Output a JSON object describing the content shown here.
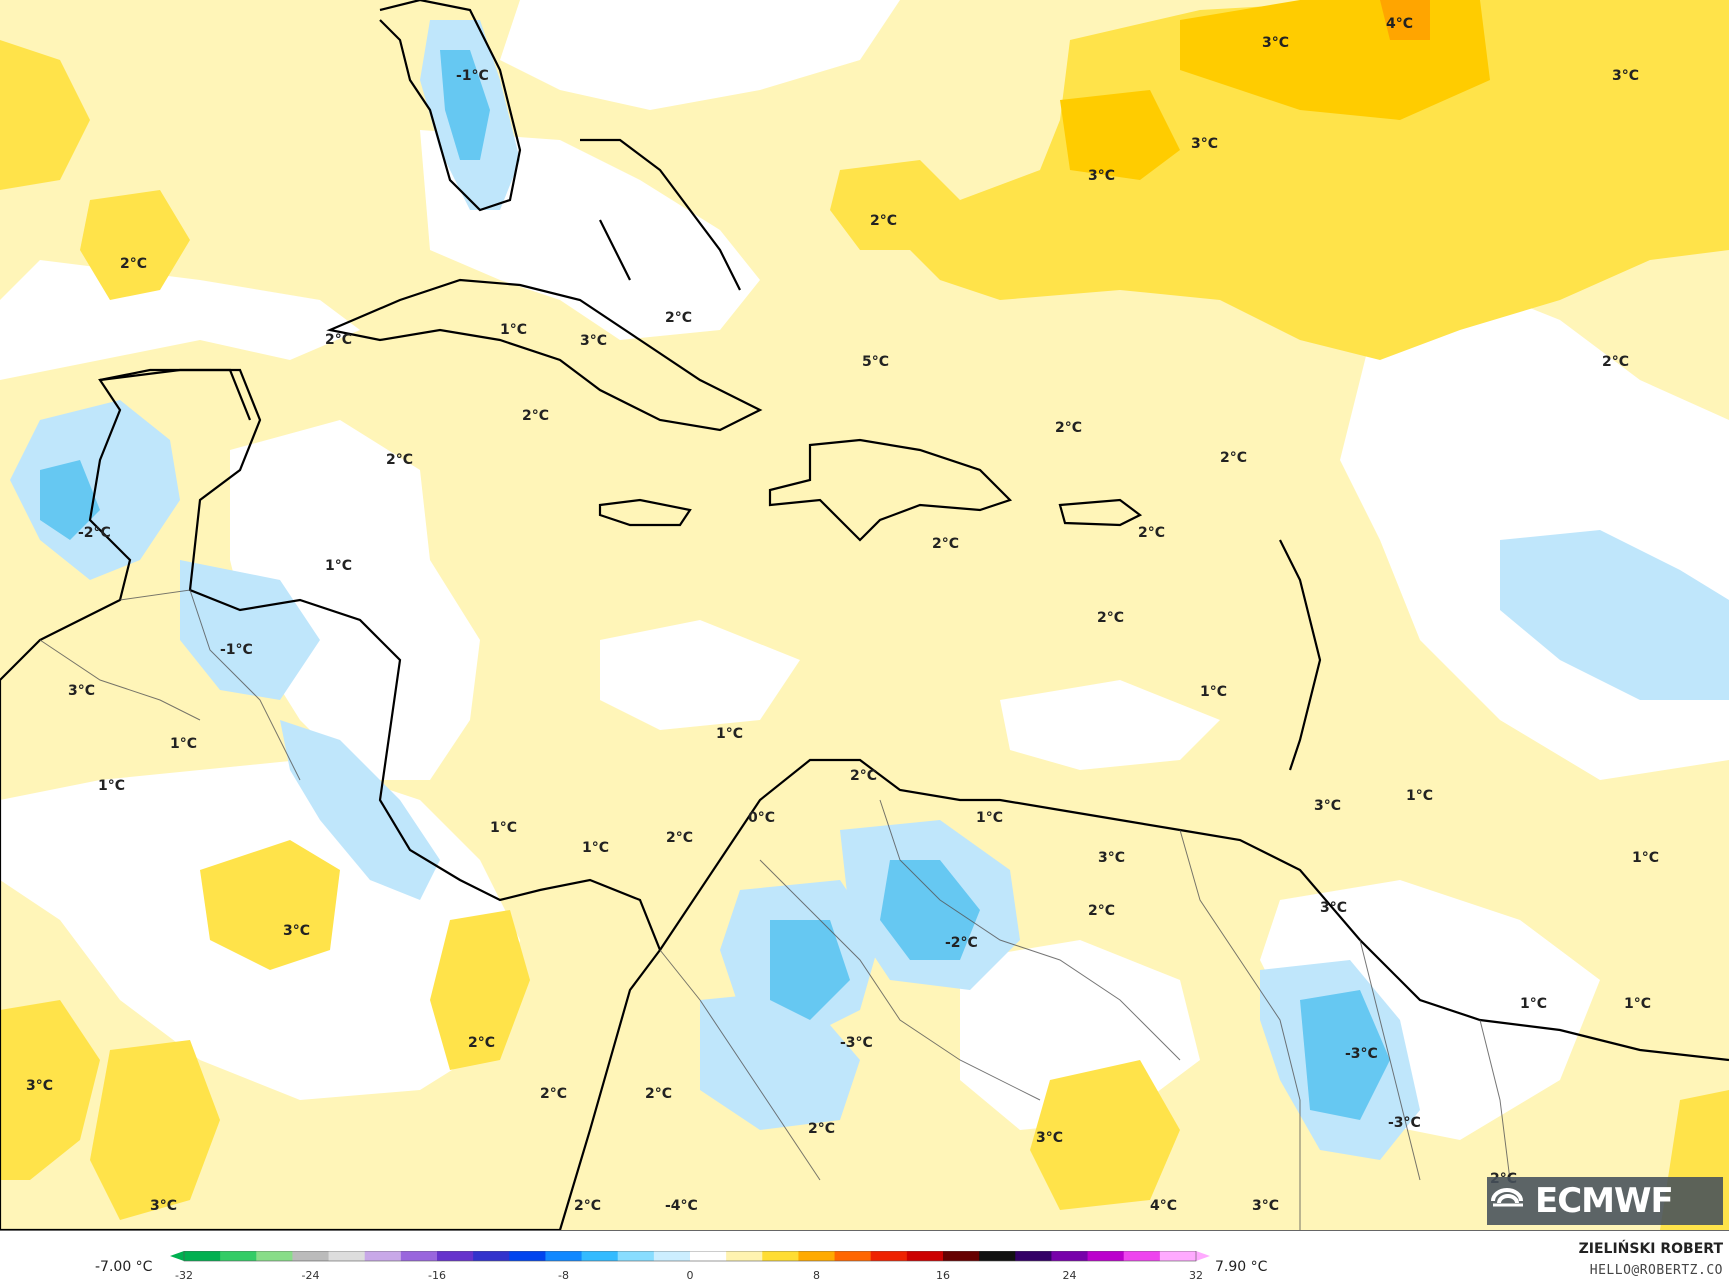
{
  "map": {
    "labels": [
      {
        "text": "4°C"
      },
      {
        "text": "3°C"
      },
      {
        "text": "3°C"
      },
      {
        "text": "3°C"
      },
      {
        "text": "3°C"
      },
      {
        "text": "-1°C"
      },
      {
        "text": "2°C"
      },
      {
        "text": "2°C"
      },
      {
        "text": "2°C"
      },
      {
        "text": "1°C"
      },
      {
        "text": "3°C"
      },
      {
        "text": "2°C"
      },
      {
        "text": "5°C"
      },
      {
        "text": "2°C"
      },
      {
        "text": "2°C"
      },
      {
        "text": "2°C"
      },
      {
        "text": "2°C"
      },
      {
        "text": "2°C"
      },
      {
        "text": "-2°C"
      },
      {
        "text": "1°C"
      },
      {
        "text": "2°C"
      },
      {
        "text": "2°C"
      },
      {
        "text": "-1°C"
      },
      {
        "text": "1°C"
      },
      {
        "text": "3°C"
      },
      {
        "text": "1°C"
      },
      {
        "text": "1°C"
      },
      {
        "text": "2°C"
      },
      {
        "text": "1°C"
      },
      {
        "text": "1°C"
      },
      {
        "text": "1°C"
      },
      {
        "text": "2°C"
      },
      {
        "text": "0°C"
      },
      {
        "text": "1°C"
      },
      {
        "text": "3°C"
      },
      {
        "text": "3°C"
      },
      {
        "text": "1°C"
      },
      {
        "text": "2°C"
      },
      {
        "text": "1°C"
      },
      {
        "text": "-2°C"
      },
      {
        "text": "2°C"
      },
      {
        "text": "3°C"
      },
      {
        "text": "3°C"
      },
      {
        "text": "-3°C"
      },
      {
        "text": "2°C"
      },
      {
        "text": "2°C"
      },
      {
        "text": "3°C"
      },
      {
        "text": "-3°C"
      },
      {
        "text": "-3°C"
      },
      {
        "text": "1°C"
      },
      {
        "text": "1°C"
      },
      {
        "text": "3°C"
      },
      {
        "text": "2°C"
      },
      {
        "text": "2°C"
      },
      {
        "text": "-4°C"
      },
      {
        "text": "2°C"
      },
      {
        "text": "4°C"
      },
      {
        "text": "3°C"
      },
      {
        "text": "2°C"
      },
      {
        "text": "3°C"
      }
    ]
  },
  "scale": {
    "min_label": "-7.00 °C",
    "max_label": "7.90 °C",
    "ticks": [
      "-32",
      "-24",
      "-16",
      "-8",
      "0",
      "8",
      "16",
      "24",
      "32"
    ],
    "colors": [
      "#00b050",
      "#33cc66",
      "#88dd88",
      "#bbbbbb",
      "#dddddd",
      "#c8a8e8",
      "#9966dd",
      "#6633cc",
      "#3333cc",
      "#0044ee",
      "#1188ff",
      "#33bbff",
      "#88ddff",
      "#cceeff",
      "#ffffff",
      "#fff3b0",
      "#ffdd33",
      "#ffaa00",
      "#ff6600",
      "#ee2200",
      "#cc0000",
      "#660000",
      "#111111",
      "#330066",
      "#7700aa",
      "#bb00cc",
      "#ee44ee",
      "#ffaaff"
    ]
  },
  "attribution": {
    "author": "ZIELIŃSKI ROBERT",
    "email": "HELLO@ROBERTZ.CO",
    "logo_text": "ECMWF"
  }
}
